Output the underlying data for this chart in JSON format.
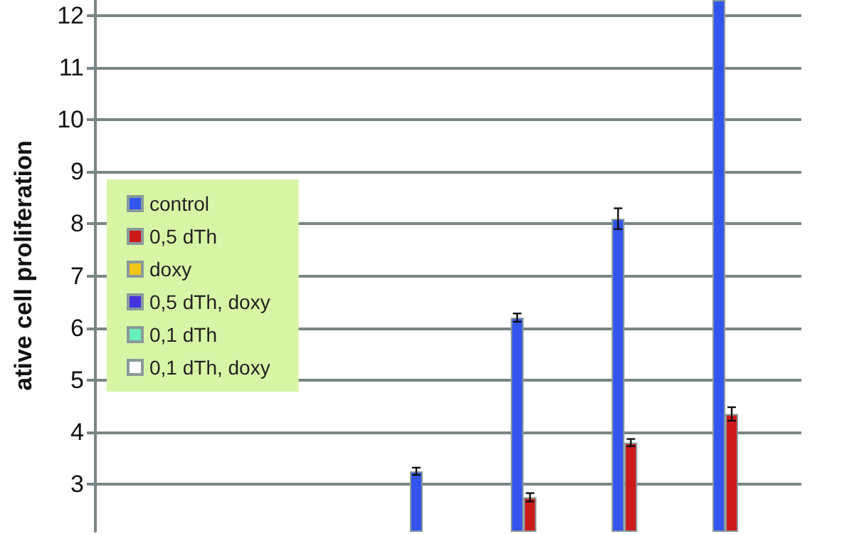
{
  "chart_data": {
    "type": "bar",
    "ylabel": "ative cell proliferation",
    "categories": [
      null,
      null,
      null,
      null,
      null,
      null,
      null
    ],
    "series": [
      {
        "name": "control",
        "color": "#3355ee",
        "values": [
          null,
          null,
          null,
          3.25,
          6.2,
          8.1,
          12.3
        ],
        "errors": [
          null,
          null,
          null,
          0.07,
          0.08,
          0.2,
          null
        ]
      },
      {
        "name": "0,5 dTh",
        "color": "#cc1a1a",
        "values": [
          null,
          null,
          null,
          null,
          2.75,
          3.8,
          4.35
        ],
        "errors": [
          null,
          null,
          null,
          null,
          0.08,
          0.07,
          0.13
        ]
      },
      {
        "name": "doxy",
        "color": "#f2c618",
        "values": [
          null,
          null,
          null,
          null,
          null,
          null,
          null
        ]
      },
      {
        "name": "0,5 dTh, doxy",
        "color": "#4433dd",
        "values": [
          null,
          null,
          null,
          null,
          null,
          null,
          null
        ]
      },
      {
        "name": "0,1 dTh",
        "color": "#66eebb",
        "values": [
          null,
          null,
          null,
          null,
          null,
          null,
          null
        ]
      },
      {
        "name": "0,1 dTh, doxy",
        "color": "#ffffff",
        "values": [
          null,
          null,
          null,
          null,
          null,
          null,
          null
        ]
      }
    ],
    "ylim": [
      2.1,
      12.3
    ],
    "yticks": [
      3,
      4,
      5,
      6,
      7,
      8,
      9,
      10,
      11,
      12
    ],
    "grid": "y",
    "legend": "left",
    "tick_labels": "y"
  }
}
